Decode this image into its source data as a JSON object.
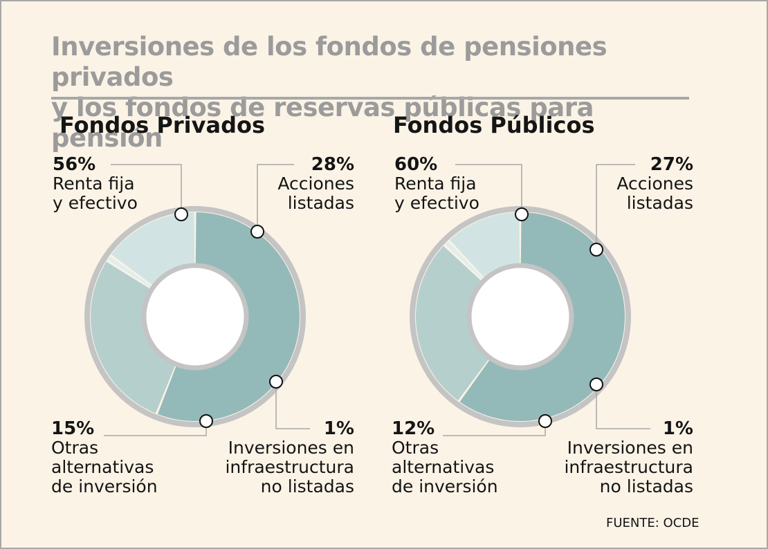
{
  "title_line1": "Inversiones de los fondos de pensiones privados",
  "title_line2": "y los fondos de reservas públicas para pensión",
  "source": "FUENTE: OCDE",
  "colors": {
    "renta": "#94b9b9",
    "acciones": "#b5cfcd",
    "infra": "#e0efee",
    "otras": "#d1e4e3",
    "ring": "#c4c4c4",
    "background": "#fbf3e6"
  },
  "chart_data": [
    {
      "type": "pie",
      "title": "Fondos Privados",
      "slices": [
        {
          "label": "Renta fija\ny efectivo",
          "value": 56,
          "display": "56%"
        },
        {
          "label": "Acciones\nlistadas",
          "value": 28,
          "display": "28%"
        },
        {
          "label": "Inversiones en\ninfraestructura\nno listadas",
          "value": 1,
          "display": "1%"
        },
        {
          "label": "Otras\nalternativas\nde inversión",
          "value": 15,
          "display": "15%"
        }
      ]
    },
    {
      "type": "pie",
      "title": "Fondos Públicos",
      "slices": [
        {
          "label": "Renta fija\ny efectivo",
          "value": 60,
          "display": "60%"
        },
        {
          "label": "Acciones\nlistadas",
          "value": 27,
          "display": "27%"
        },
        {
          "label": "Inversiones en\ninfraestructura\nno listadas",
          "value": 1,
          "display": "1%"
        },
        {
          "label": "Otras\nalternativas\nde inversión",
          "value": 12,
          "display": "12%"
        }
      ]
    }
  ]
}
